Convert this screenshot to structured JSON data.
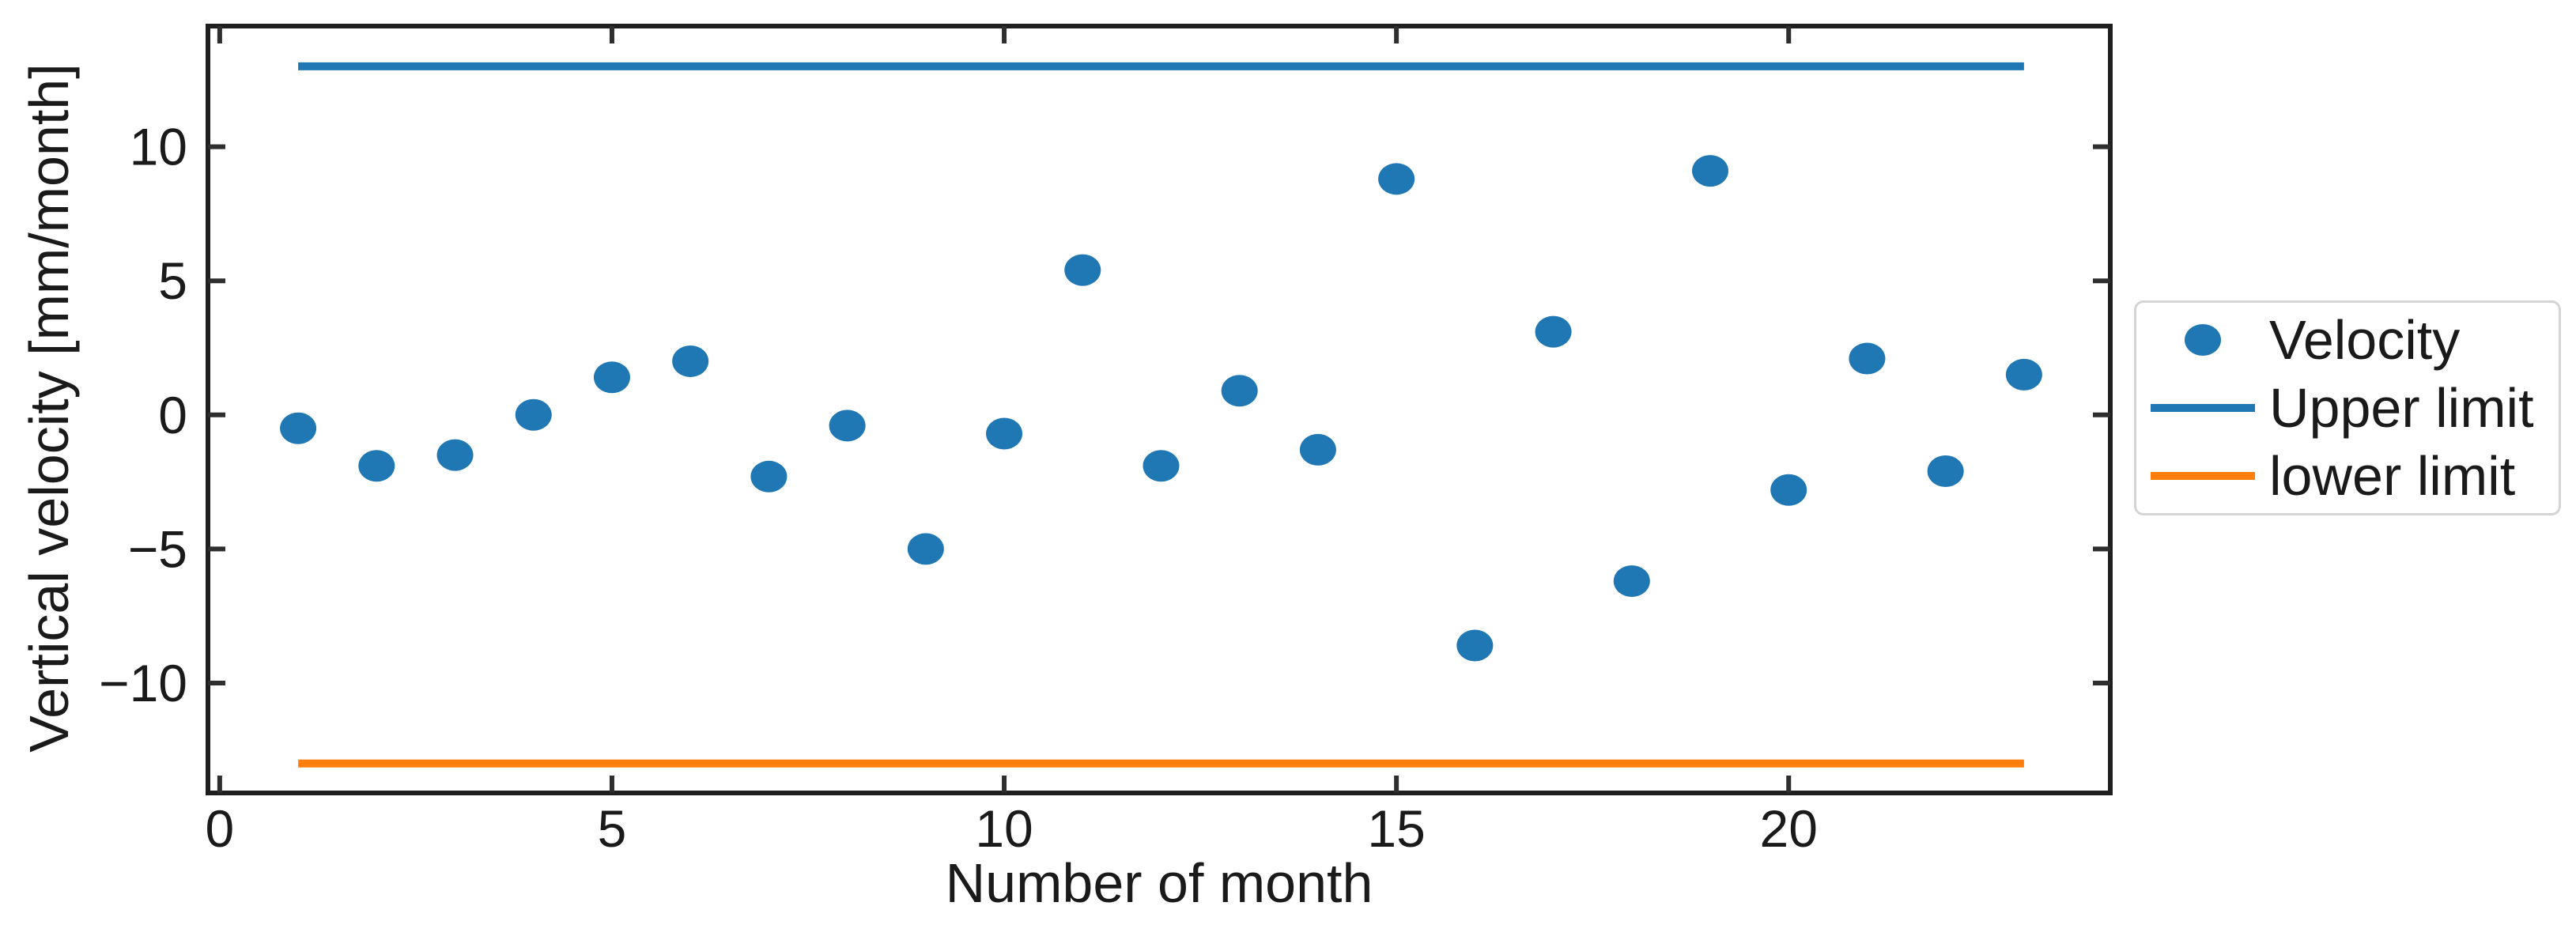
{
  "figure": {
    "background": "#ffffff"
  },
  "colors": {
    "blue": "#1f77b4",
    "orange": "#ff7f0e",
    "axis": "#1f1f1f",
    "tick": "#2e2e2e",
    "text": "#1a1a1a",
    "legend_border": "#d4d4d4"
  },
  "chart_data": {
    "type": "scatter",
    "title": "",
    "xlabel": "Number of month",
    "ylabel": "Vertical velocity [mm/month]",
    "xlim": [
      -0.15,
      24.1
    ],
    "ylim": [
      -14.1,
      14.5
    ],
    "x_ticks": [
      0,
      5,
      10,
      15,
      20
    ],
    "x_tick_labels": [
      "0",
      "5",
      "10",
      "15",
      "20"
    ],
    "y_ticks": [
      10,
      5,
      0,
      -5,
      -10
    ],
    "y_tick_labels": [
      "10",
      "5",
      "0",
      "−5",
      "−10"
    ],
    "grid": false,
    "tick_direction": "in",
    "ticks_on_all_sides": true,
    "series": [
      {
        "name": "Velocity",
        "type": "scatter",
        "color": "#1f77b4",
        "x": [
          1,
          2,
          3,
          4,
          5,
          6,
          7,
          8,
          9,
          10,
          11,
          12,
          13,
          14,
          15,
          16,
          17,
          18,
          19,
          20,
          21,
          22,
          23
        ],
        "y": [
          -0.5,
          -1.9,
          -1.5,
          0.0,
          1.4,
          2.0,
          -2.3,
          -0.4,
          -5.0,
          -0.7,
          5.4,
          -1.9,
          0.9,
          -1.3,
          8.8,
          -8.6,
          3.1,
          -6.2,
          9.1,
          -2.8,
          2.1,
          -2.1,
          1.5
        ]
      },
      {
        "name": "Upper limit",
        "type": "hline",
        "color": "#1f77b4",
        "y": 13,
        "x_start": 1,
        "x_end": 23
      },
      {
        "name": "lower limit",
        "type": "hline",
        "color": "#ff7f0e",
        "y": -13,
        "x_start": 1,
        "x_end": 23
      }
    ],
    "legend": {
      "position": "outside center-right",
      "entries": [
        {
          "label": "Velocity",
          "marker": "dot",
          "color": "#1f77b4"
        },
        {
          "label": "Upper limit",
          "marker": "line",
          "color": "#1f77b4"
        },
        {
          "label": "lower limit",
          "marker": "line",
          "color": "#ff7f0e"
        }
      ]
    }
  }
}
